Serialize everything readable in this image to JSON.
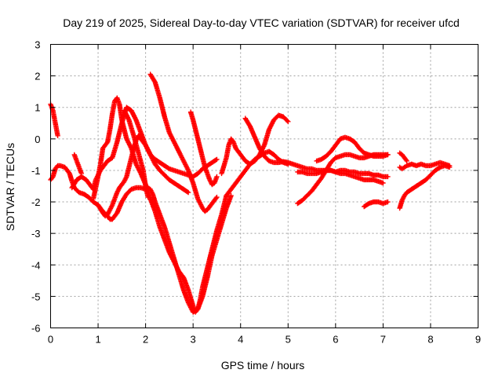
{
  "chart_data": {
    "type": "scatter",
    "title": "Day 219 of 2025, Sidereal Day-to-day VTEC variation (SDTVAR) for receiver ufcd",
    "xlabel": "GPS time / hours",
    "ylabel": "SDTVAR / TECUs",
    "xlim": [
      0,
      9
    ],
    "ylim": [
      -6,
      3
    ],
    "xticks": [
      "0",
      "1",
      "2",
      "3",
      "4",
      "5",
      "6",
      "7",
      "8",
      "9"
    ],
    "yticks": [
      "3",
      "2",
      "1",
      "0",
      "-1",
      "-2",
      "-3",
      "-4",
      "-5",
      "-6"
    ],
    "grid": true,
    "marker": "+",
    "color": "#ff0000",
    "series": [
      {
        "x": [
          0.0,
          0.05,
          0.1,
          0.15,
          0.2,
          0.3,
          0.4,
          0.45,
          0.5,
          0.6,
          0.7,
          0.8,
          0.9,
          1.0,
          1.1,
          1.15,
          1.2,
          1.3,
          1.35,
          1.4,
          1.45,
          1.5,
          1.55,
          1.6,
          1.65,
          1.7,
          1.75,
          1.8,
          1.85,
          1.9,
          2.0,
          2.1,
          2.2,
          2.3,
          2.4,
          2.5,
          2.6,
          2.7,
          2.8,
          2.9,
          3.0,
          3.1,
          3.2,
          3.3,
          3.4,
          3.5
        ],
        "y": [
          -1.3,
          -1.2,
          -0.95,
          -0.85,
          -0.85,
          -0.9,
          -1.1,
          -1.35,
          -1.55,
          -1.7,
          -1.75,
          -1.85,
          -2.0,
          -2.1,
          -2.35,
          -2.45,
          -2.4,
          -2.1,
          -1.9,
          -1.7,
          -1.55,
          -1.45,
          -1.35,
          -1.2,
          -0.9,
          -0.6,
          -0.3,
          -0.05,
          0.1,
          0.0,
          -0.2,
          -0.5,
          -0.65,
          -0.75,
          -0.85,
          -0.95,
          -1.0,
          -1.05,
          -1.1,
          -1.15,
          -1.2,
          -1.1,
          -0.95,
          -0.85,
          -0.75,
          -0.65
        ]
      },
      {
        "x": [
          0.0,
          0.05,
          0.1,
          0.15
        ],
        "y": [
          1.1,
          0.9,
          0.5,
          0.1
        ]
      },
      {
        "x": [
          0.45,
          0.55,
          0.65,
          0.75,
          0.85,
          0.9,
          0.95,
          1.05,
          1.1,
          1.2,
          1.3,
          1.4,
          1.5,
          1.6,
          1.7,
          1.8,
          1.9,
          2.0,
          2.1,
          2.2,
          2.3,
          2.4,
          2.5,
          2.6,
          2.7,
          2.8,
          2.9
        ],
        "y": [
          -1.55,
          -1.3,
          -1.2,
          -1.3,
          -1.5,
          -1.6,
          -1.3,
          -1.0,
          -0.9,
          -0.7,
          -0.6,
          -0.1,
          0.5,
          1.0,
          0.9,
          0.6,
          0.2,
          -0.2,
          -0.5,
          -0.8,
          -1.0,
          -1.15,
          -1.3,
          -1.4,
          -1.5,
          -1.6,
          -1.7
        ]
      },
      {
        "x": [
          0.5,
          0.55,
          0.6,
          0.65
        ],
        "y": [
          -0.5,
          -0.7,
          -0.9,
          -1.1
        ]
      },
      {
        "x": [
          0.9,
          1.0,
          1.05,
          1.1,
          1.2,
          1.25,
          1.3,
          1.35,
          1.4,
          1.45,
          1.5,
          1.6,
          1.7,
          1.8,
          1.9,
          2.0,
          2.1,
          2.2,
          2.3,
          2.4,
          2.5,
          2.6,
          2.7,
          2.8,
          2.9,
          3.0,
          3.05,
          3.1,
          3.15,
          3.2,
          3.3,
          3.4,
          3.5,
          3.6,
          3.7
        ],
        "y": [
          -1.9,
          -1.2,
          -0.8,
          -0.3,
          -0.1,
          0.3,
          0.8,
          1.2,
          1.3,
          1.1,
          0.6,
          0.0,
          -0.3,
          -0.8,
          -1.1,
          -1.45,
          -1.9,
          -2.3,
          -2.8,
          -3.2,
          -3.6,
          -3.9,
          -4.2,
          -4.4,
          -4.8,
          -5.3,
          -5.5,
          -5.4,
          -5.1,
          -4.7,
          -4.1,
          -3.5,
          -2.9,
          -2.4,
          -1.8
        ]
      },
      {
        "x": [
          1.0,
          1.1,
          1.2,
          1.25,
          1.3,
          1.4,
          1.5,
          1.6,
          1.7,
          1.8,
          1.9,
          2.0,
          2.05,
          2.1,
          2.15,
          2.2,
          2.3,
          2.4,
          2.5,
          2.6,
          2.7,
          2.8,
          2.9,
          3.0,
          3.1,
          3.2,
          3.3,
          3.4,
          3.5,
          3.6,
          3.7,
          3.8
        ],
        "y": [
          -2.1,
          -2.3,
          -2.45,
          -2.55,
          -2.55,
          -2.35,
          -2.0,
          -1.75,
          -1.6,
          -1.55,
          -1.55,
          -1.6,
          -1.55,
          -1.6,
          -1.75,
          -2.0,
          -2.4,
          -2.8,
          -3.3,
          -3.8,
          -4.3,
          -4.8,
          -5.2,
          -5.5,
          -5.4,
          -5.0,
          -4.4,
          -3.7,
          -3.2,
          -2.7,
          -2.2,
          -1.8
        ]
      },
      {
        "x": [
          1.55,
          1.65,
          1.75,
          1.85,
          1.95,
          2.0,
          2.05
        ],
        "y": [
          0.9,
          0.6,
          0.1,
          -0.45,
          -1.0,
          -1.5,
          -1.85
        ]
      },
      {
        "x": [
          2.1,
          2.2,
          2.3,
          2.4,
          2.5,
          2.6,
          2.7,
          2.8,
          2.9,
          3.0,
          3.1,
          3.2,
          3.25,
          3.3,
          3.4,
          3.5
        ],
        "y": [
          2.05,
          1.8,
          1.3,
          0.7,
          0.2,
          -0.1,
          -0.4,
          -0.7,
          -1.0,
          -1.4,
          -1.9,
          -2.2,
          -2.3,
          -2.25,
          -2.05,
          -1.85
        ]
      },
      {
        "x": [
          2.95,
          3.0,
          3.05,
          3.1,
          3.15,
          3.2,
          3.25,
          3.3,
          3.35,
          3.4,
          3.45,
          3.5
        ],
        "y": [
          0.85,
          0.6,
          0.3,
          0.0,
          -0.3,
          -0.6,
          -0.9,
          -1.1,
          -1.3,
          -1.45,
          -1.4,
          -1.2
        ]
      },
      {
        "x": [
          3.6,
          3.7,
          3.75,
          3.8,
          3.85,
          3.9,
          4.0,
          4.1,
          4.2,
          4.3,
          4.4,
          4.5,
          4.6,
          4.7,
          4.8,
          4.9,
          5.0
        ],
        "y": [
          -1.1,
          -0.6,
          -0.2,
          0.0,
          -0.1,
          -0.3,
          -0.5,
          -0.7,
          -0.8,
          -0.7,
          -0.5,
          -0.2,
          0.3,
          0.6,
          0.75,
          0.7,
          0.55
        ]
      },
      {
        "x": [
          3.7,
          3.8,
          3.9,
          4.0,
          4.1,
          4.2,
          4.3,
          4.4,
          4.5,
          4.6,
          4.7,
          4.8,
          4.9,
          5.0
        ],
        "y": [
          -1.8,
          -1.6,
          -1.4,
          -1.2,
          -1.0,
          -0.8,
          -0.65,
          -0.55,
          -0.45,
          -0.4,
          -0.5,
          -0.65,
          -0.75,
          -0.8
        ]
      },
      {
        "x": [
          4.1,
          4.2,
          4.3,
          4.4,
          4.5,
          4.6,
          4.7,
          4.8,
          4.9,
          5.0,
          5.1,
          5.2,
          5.3,
          5.4,
          5.5,
          5.6,
          5.7,
          5.8,
          5.9,
          6.0,
          6.1,
          6.2,
          6.3,
          6.4,
          6.5,
          6.6,
          6.7,
          6.8,
          6.9,
          7.0,
          7.1
        ],
        "y": [
          0.65,
          0.4,
          0.05,
          -0.3,
          -0.55,
          -0.7,
          -0.75,
          -0.75,
          -0.72,
          -0.75,
          -0.8,
          -0.85,
          -0.9,
          -0.95,
          -0.95,
          -1.0,
          -1.0,
          -1.0,
          -1.0,
          -1.05,
          -1.0,
          -1.0,
          -1.05,
          -1.05,
          -1.1,
          -1.1,
          -1.1,
          -1.15,
          -1.15,
          -1.2,
          -1.2
        ]
      },
      {
        "x": [
          5.2,
          5.3,
          5.4,
          5.5,
          5.6,
          5.7,
          5.8,
          5.9,
          6.0,
          6.1,
          6.2,
          6.3,
          6.4,
          6.5,
          6.6,
          6.7,
          6.8,
          6.9,
          7.0,
          7.1
        ],
        "y": [
          -2.05,
          -1.95,
          -1.8,
          -1.65,
          -1.45,
          -1.25,
          -1.0,
          -0.75,
          -0.6,
          -0.55,
          -0.5,
          -0.5,
          -0.55,
          -0.6,
          -0.6,
          -0.55,
          -0.5,
          -0.5,
          -0.5,
          -0.5
        ]
      },
      {
        "x": [
          5.2,
          5.3,
          5.4,
          5.5,
          5.6,
          5.7,
          5.8,
          5.9,
          6.0,
          6.1,
          6.2,
          6.3,
          6.4,
          6.5,
          6.6,
          6.7,
          6.8,
          6.9,
          7.0
        ],
        "y": [
          -1.05,
          -1.05,
          -1.1,
          -1.1,
          -1.1,
          -1.05,
          -1.0,
          -1.0,
          -1.05,
          -1.1,
          -1.1,
          -1.15,
          -1.2,
          -1.25,
          -1.3,
          -1.3,
          -1.3,
          -1.35,
          -1.4
        ]
      },
      {
        "x": [
          5.6,
          5.7,
          5.8,
          5.9,
          6.0,
          6.1,
          6.2,
          6.3,
          6.4,
          6.5,
          6.6,
          6.7,
          6.8,
          6.9,
          7.0,
          7.1
        ],
        "y": [
          -0.7,
          -0.65,
          -0.55,
          -0.4,
          -0.2,
          0.0,
          0.05,
          0.0,
          -0.1,
          -0.3,
          -0.45,
          -0.5,
          -0.55,
          -0.55,
          -0.55,
          -0.5
        ]
      },
      {
        "x": [
          6.6,
          6.7,
          6.8,
          6.9,
          7.0,
          7.1
        ],
        "y": [
          -2.15,
          -2.05,
          -2.0,
          -2.0,
          -2.05,
          -2.0
        ]
      },
      {
        "x": [
          7.35,
          7.4,
          7.45,
          7.5,
          7.6,
          7.7,
          7.8,
          7.9,
          8.0,
          8.1,
          8.2,
          8.3,
          8.4
        ],
        "y": [
          -2.2,
          -1.95,
          -1.8,
          -1.7,
          -1.6,
          -1.5,
          -1.4,
          -1.3,
          -1.15,
          -1.0,
          -0.9,
          -0.85,
          -0.9
        ]
      },
      {
        "x": [
          7.35,
          7.4,
          7.45,
          7.5,
          7.6,
          7.7,
          7.8,
          7.9,
          8.0,
          8.1,
          8.2,
          8.3,
          8.4
        ],
        "y": [
          -0.9,
          -0.95,
          -0.9,
          -0.85,
          -0.8,
          -0.85,
          -0.8,
          -0.85,
          -0.85,
          -0.8,
          -0.75,
          -0.8,
          -0.85
        ]
      },
      {
        "x": [
          7.35,
          7.4,
          7.45,
          7.5
        ],
        "y": [
          -0.45,
          -0.5,
          -0.6,
          -0.7
        ]
      }
    ]
  }
}
